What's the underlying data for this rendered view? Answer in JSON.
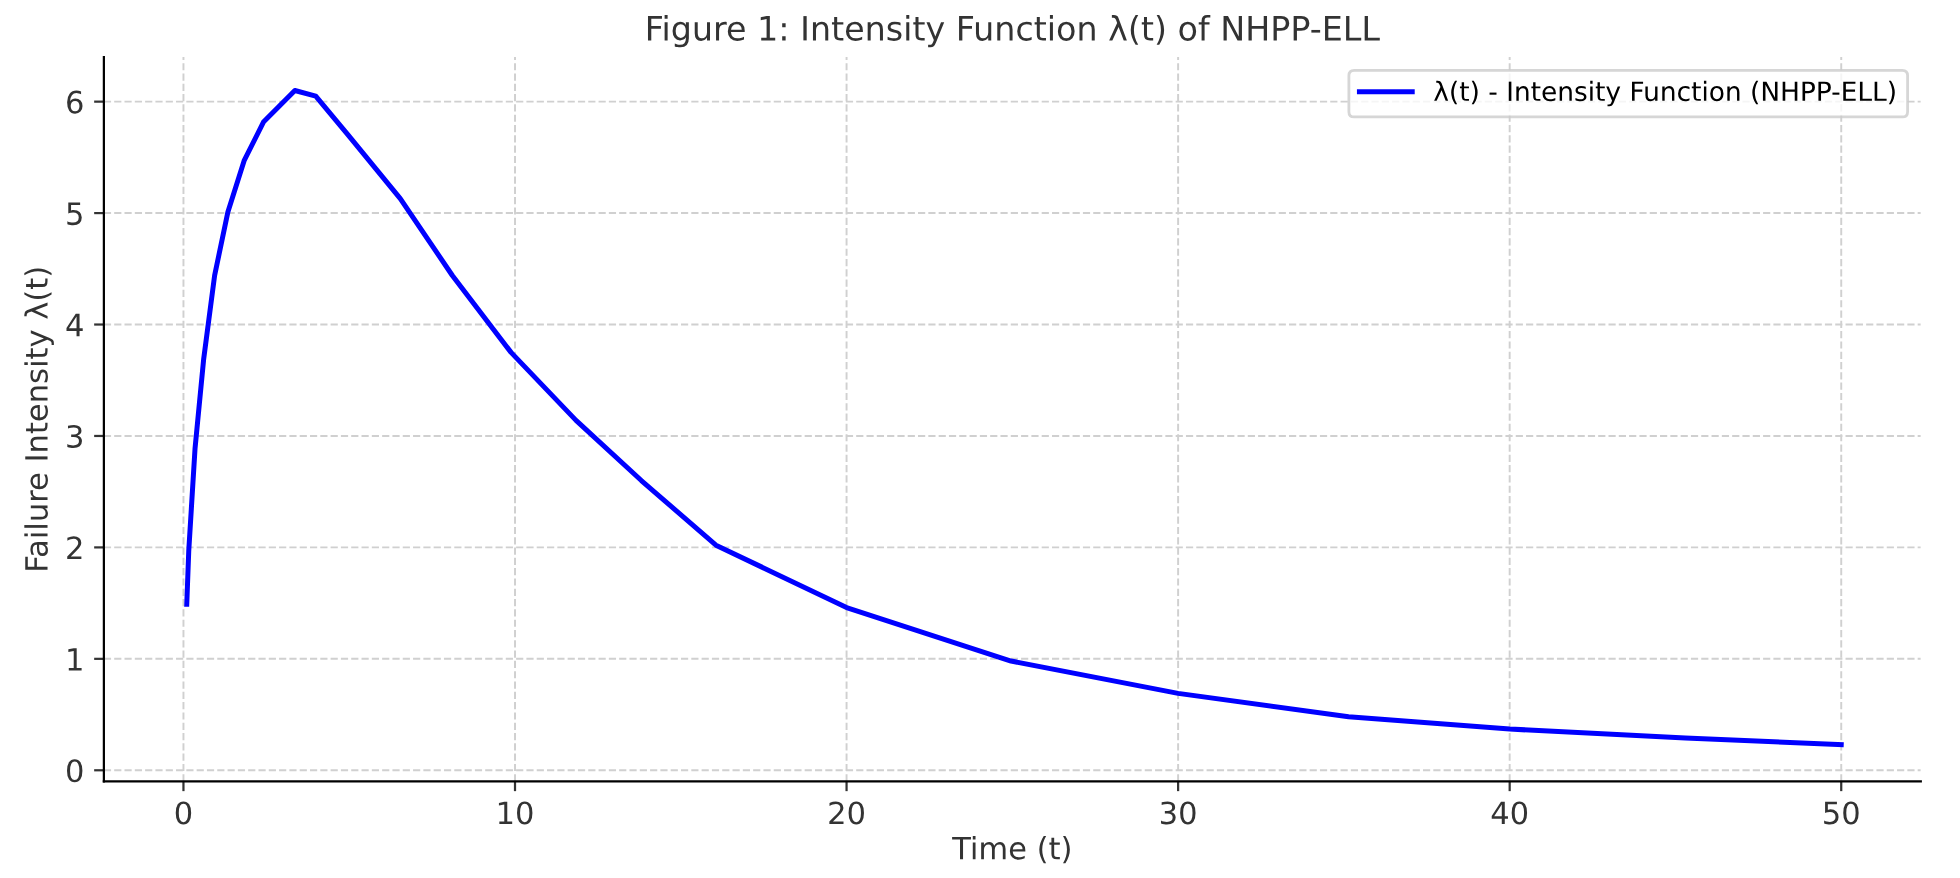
{
  "chart_data": {
    "type": "line",
    "title": "Figure 1: Intensity Function λ(t) of NHPP-ELL",
    "xlabel": "Time (t)",
    "ylabel": "Failure Intensity λ(t)",
    "series": [
      {
        "name": "λ(t) - Intensity Function (NHPP-ELL)",
        "color": "#0000ff",
        "x": [
          0.1,
          0.16,
          0.35,
          0.61,
          0.94,
          1.34,
          1.83,
          2.42,
          3.36,
          3.99,
          4.97,
          6.54,
          8.11,
          9.88,
          11.84,
          13.81,
          16.06,
          20,
          24.96,
          30,
          35.14,
          40,
          45.3,
          50
        ],
        "values": [
          1.49,
          1.97,
          2.89,
          3.69,
          4.44,
          5.01,
          5.47,
          5.82,
          6.1,
          6.05,
          5.7,
          5.13,
          4.44,
          3.75,
          3.14,
          2.6,
          2.02,
          1.46,
          0.98,
          0.69,
          0.48,
          0.37,
          0.29,
          0.23
        ]
      }
    ],
    "xlim": [
      -2.4,
      52.4
    ],
    "xticks": [
      0,
      10,
      20,
      30,
      40,
      50
    ],
    "ylim": [
      -0.1,
      6.4
    ],
    "yticks": [
      0,
      1,
      2,
      3,
      4,
      5,
      6
    ],
    "grid": true,
    "legend": "top right",
    "line_style": "solid",
    "marker": "none"
  }
}
